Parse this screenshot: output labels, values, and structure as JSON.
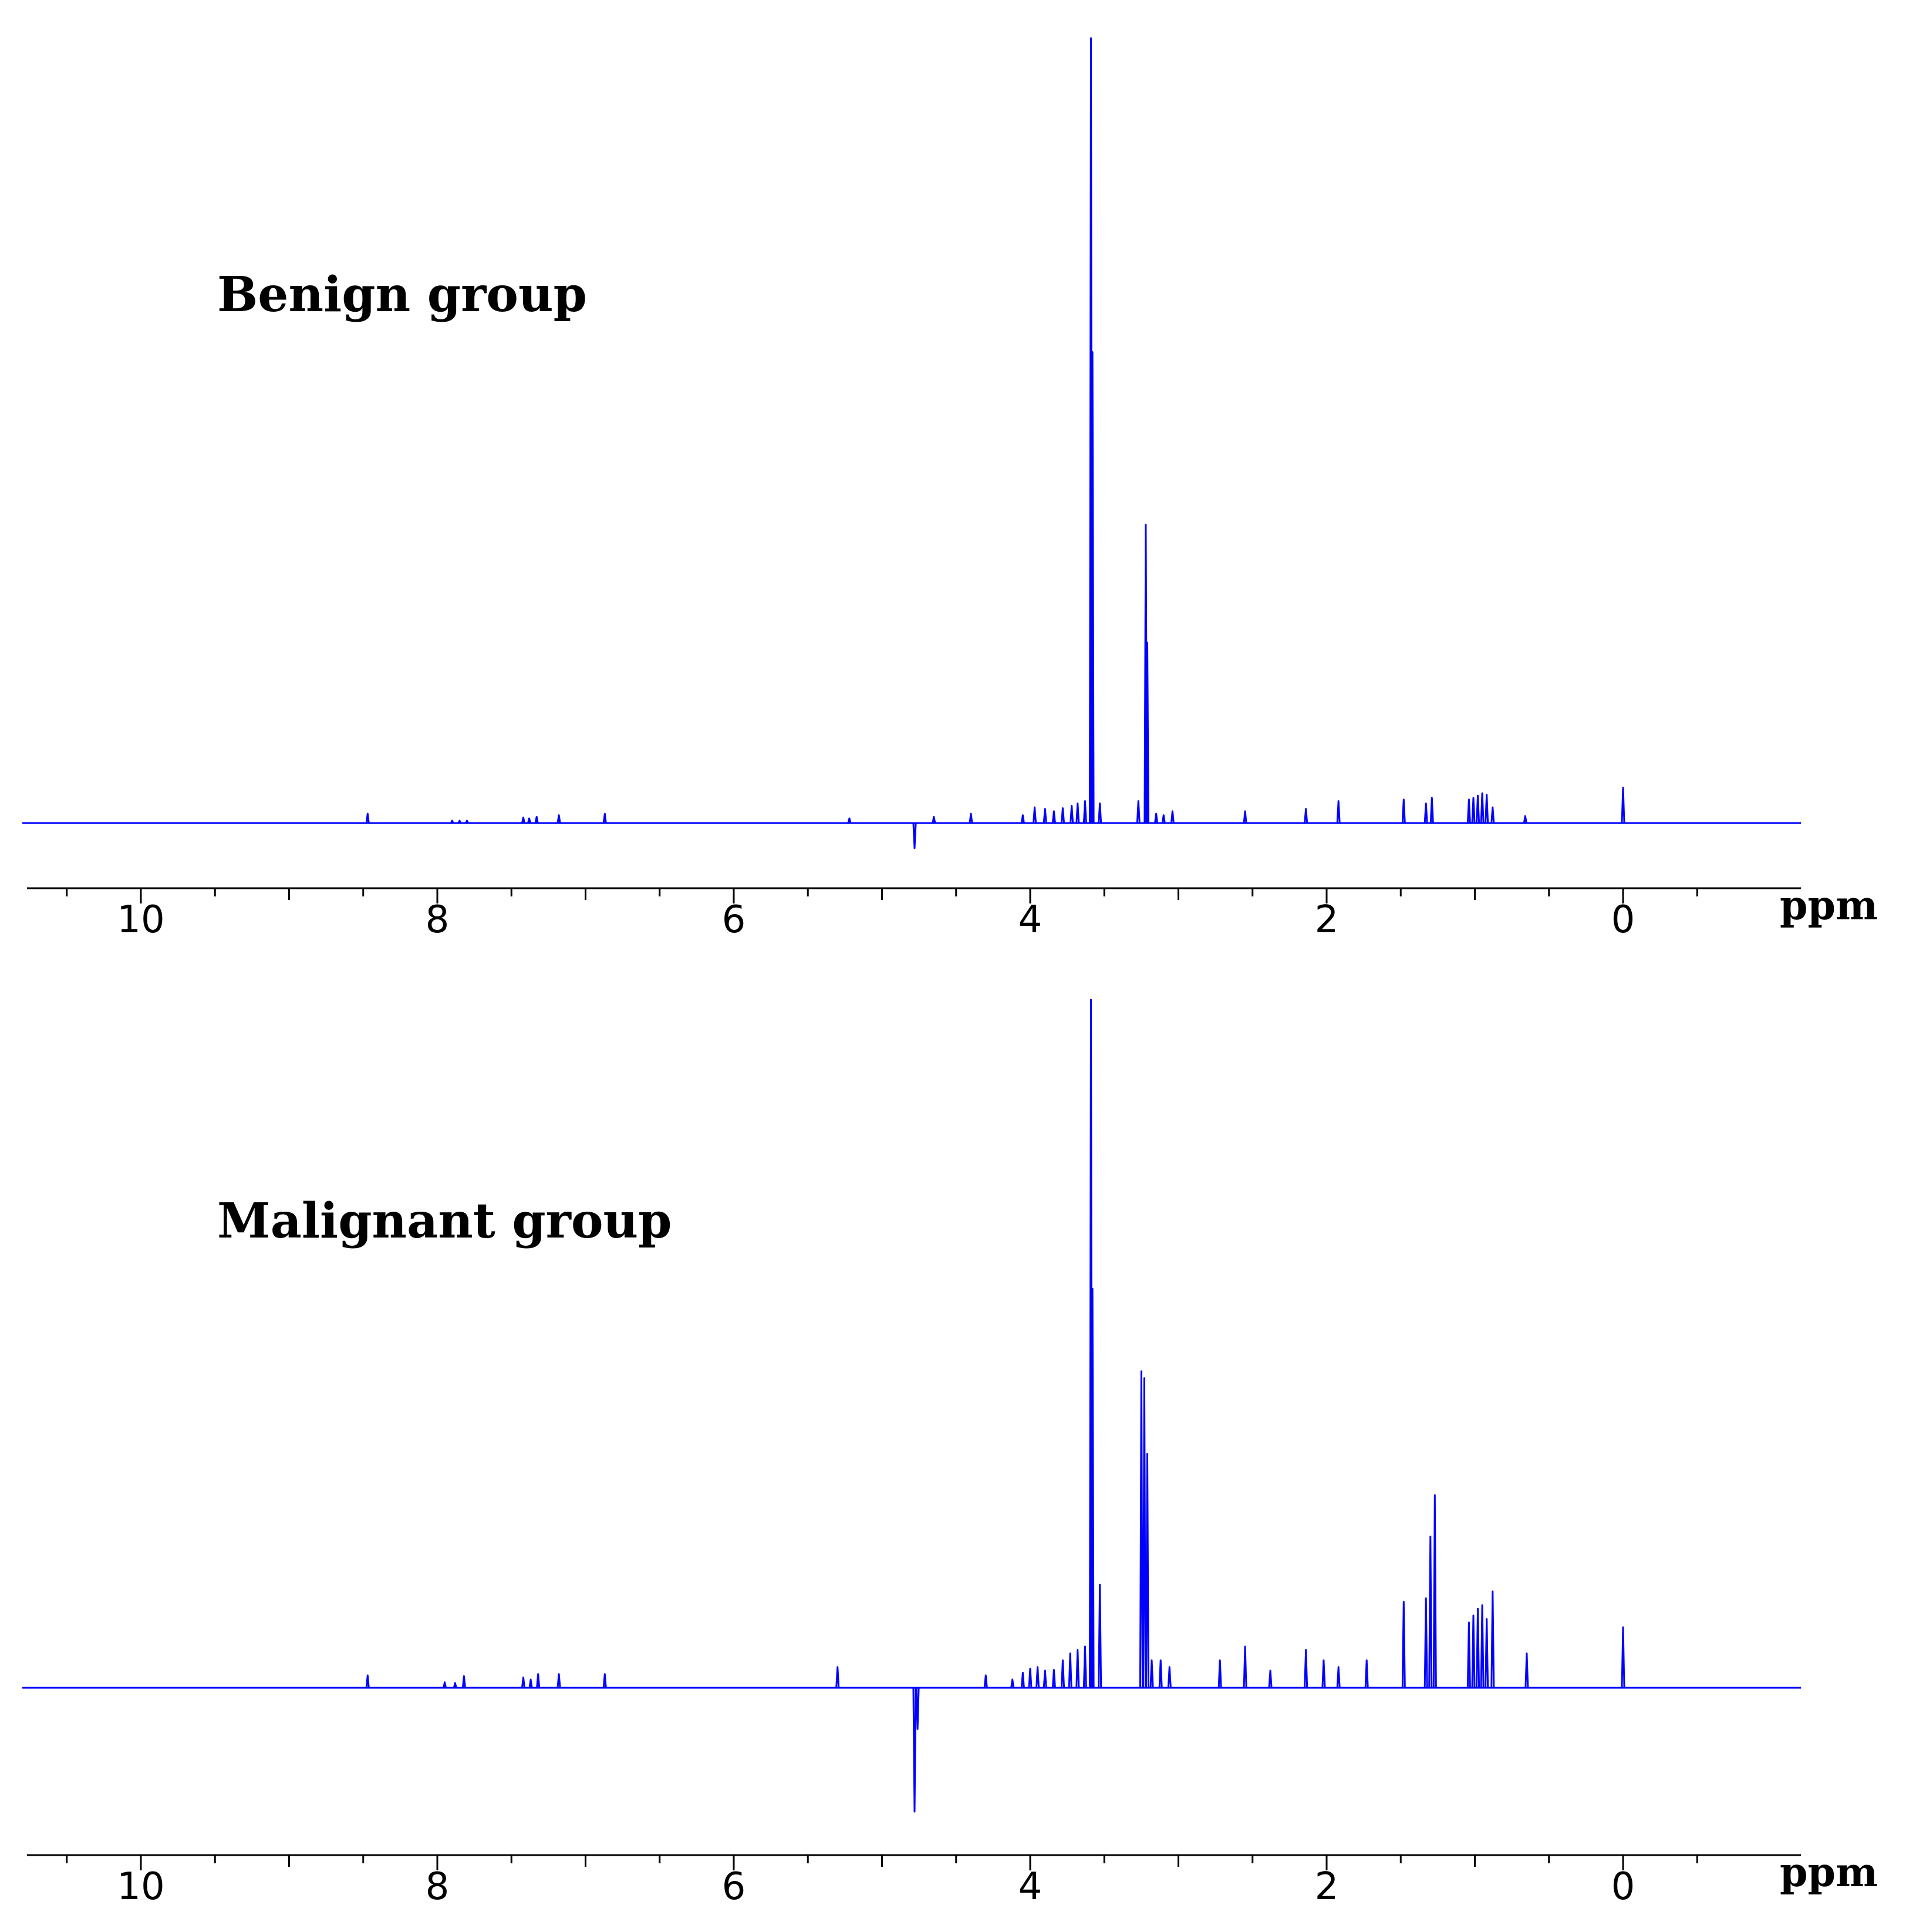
{
  "chart_data": [
    {
      "type": "line",
      "title": "Benign group",
      "xlabel": "ppm",
      "ylabel": "",
      "x_reversed": true,
      "xlim": [
        10.8,
        -1.0
      ],
      "ylim": [
        -3,
        100
      ],
      "tick_labels": [
        "10",
        "8",
        "6",
        "4",
        "2",
        "0"
      ],
      "color": "#0000ff",
      "peaks": [
        {
          "x": 8.47,
          "y": 1.2
        },
        {
          "x": 7.9,
          "y": 0.3
        },
        {
          "x": 7.85,
          "y": 0.3
        },
        {
          "x": 7.8,
          "y": 0.3
        },
        {
          "x": 7.42,
          "y": 0.7
        },
        {
          "x": 7.38,
          "y": 0.6
        },
        {
          "x": 7.33,
          "y": 0.8
        },
        {
          "x": 7.18,
          "y": 1.0
        },
        {
          "x": 6.87,
          "y": 1.2
        },
        {
          "x": 5.22,
          "y": 0.6
        },
        {
          "x": 4.78,
          "y": -3.2
        },
        {
          "x": 4.65,
          "y": 0.8
        },
        {
          "x": 4.4,
          "y": 1.2
        },
        {
          "x": 4.05,
          "y": 1.0
        },
        {
          "x": 3.97,
          "y": 2.0
        },
        {
          "x": 3.9,
          "y": 1.8
        },
        {
          "x": 3.84,
          "y": 1.5
        },
        {
          "x": 3.78,
          "y": 1.9
        },
        {
          "x": 3.72,
          "y": 2.2
        },
        {
          "x": 3.68,
          "y": 2.5
        },
        {
          "x": 3.63,
          "y": 2.8
        },
        {
          "x": 3.59,
          "y": 100
        },
        {
          "x": 3.58,
          "y": 60
        },
        {
          "x": 3.53,
          "y": 2.5
        },
        {
          "x": 3.27,
          "y": 2.8
        },
        {
          "x": 3.22,
          "y": 38
        },
        {
          "x": 3.21,
          "y": 23
        },
        {
          "x": 3.15,
          "y": 1.2
        },
        {
          "x": 3.1,
          "y": 1.0
        },
        {
          "x": 3.04,
          "y": 1.5
        },
        {
          "x": 2.55,
          "y": 1.5
        },
        {
          "x": 2.14,
          "y": 1.8
        },
        {
          "x": 1.92,
          "y": 2.8
        },
        {
          "x": 1.48,
          "y": 3.0
        },
        {
          "x": 1.33,
          "y": 2.5
        },
        {
          "x": 1.29,
          "y": 3.2
        },
        {
          "x": 1.04,
          "y": 3.0
        },
        {
          "x": 1.01,
          "y": 3.2
        },
        {
          "x": 0.98,
          "y": 3.5
        },
        {
          "x": 0.95,
          "y": 3.8
        },
        {
          "x": 0.92,
          "y": 3.6
        },
        {
          "x": 0.88,
          "y": 2.0
        },
        {
          "x": 0.66,
          "y": 0.9
        },
        {
          "x": 0.0,
          "y": 4.5
        }
      ]
    },
    {
      "type": "line",
      "title": "Malignant group",
      "xlabel": "ppm",
      "ylabel": "",
      "x_reversed": true,
      "xlim": [
        10.8,
        -1.0
      ],
      "ylim": [
        -18,
        100
      ],
      "tick_labels": [
        "10",
        "8",
        "6",
        "4",
        "2",
        "0"
      ],
      "color": "#0000ff",
      "peaks": [
        {
          "x": 8.47,
          "y": 1.8
        },
        {
          "x": 7.95,
          "y": 0.8
        },
        {
          "x": 7.88,
          "y": 0.7
        },
        {
          "x": 7.82,
          "y": 1.7
        },
        {
          "x": 7.42,
          "y": 1.5
        },
        {
          "x": 7.37,
          "y": 1.2
        },
        {
          "x": 7.32,
          "y": 2.0
        },
        {
          "x": 7.18,
          "y": 2.0
        },
        {
          "x": 6.87,
          "y": 2.0
        },
        {
          "x": 5.3,
          "y": 3.0
        },
        {
          "x": 4.78,
          "y": -18
        },
        {
          "x": 4.76,
          "y": -6
        },
        {
          "x": 4.3,
          "y": 1.8
        },
        {
          "x": 4.12,
          "y": 1.2
        },
        {
          "x": 4.05,
          "y": 2.2
        },
        {
          "x": 4.0,
          "y": 2.8
        },
        {
          "x": 3.95,
          "y": 3.0
        },
        {
          "x": 3.9,
          "y": 2.5
        },
        {
          "x": 3.84,
          "y": 2.6
        },
        {
          "x": 3.78,
          "y": 4.0
        },
        {
          "x": 3.73,
          "y": 5.0
        },
        {
          "x": 3.68,
          "y": 5.5
        },
        {
          "x": 3.63,
          "y": 6.0
        },
        {
          "x": 3.59,
          "y": 100
        },
        {
          "x": 3.58,
          "y": 58
        },
        {
          "x": 3.53,
          "y": 15
        },
        {
          "x": 3.25,
          "y": 46
        },
        {
          "x": 3.23,
          "y": 45
        },
        {
          "x": 3.21,
          "y": 34
        },
        {
          "x": 3.18,
          "y": 4.0
        },
        {
          "x": 3.12,
          "y": 4.0
        },
        {
          "x": 3.06,
          "y": 3.0
        },
        {
          "x": 2.72,
          "y": 4.0
        },
        {
          "x": 2.55,
          "y": 6.0
        },
        {
          "x": 2.38,
          "y": 2.5
        },
        {
          "x": 2.14,
          "y": 5.5
        },
        {
          "x": 2.02,
          "y": 4.0
        },
        {
          "x": 1.92,
          "y": 3.0
        },
        {
          "x": 1.73,
          "y": 4.0
        },
        {
          "x": 1.48,
          "y": 12.5
        },
        {
          "x": 1.33,
          "y": 13.0
        },
        {
          "x": 1.3,
          "y": 22
        },
        {
          "x": 1.27,
          "y": 28
        },
        {
          "x": 1.04,
          "y": 9.5
        },
        {
          "x": 1.01,
          "y": 10.5
        },
        {
          "x": 0.98,
          "y": 11.5
        },
        {
          "x": 0.95,
          "y": 12.0
        },
        {
          "x": 0.92,
          "y": 10.0
        },
        {
          "x": 0.88,
          "y": 14.0
        },
        {
          "x": 0.65,
          "y": 5.0
        },
        {
          "x": 0.0,
          "y": 8.8
        }
      ]
    }
  ]
}
